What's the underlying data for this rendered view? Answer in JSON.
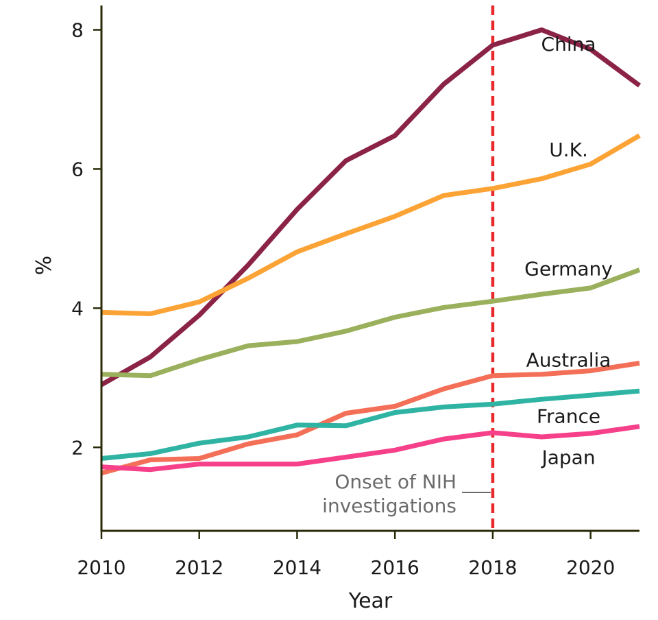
{
  "chart_data": {
    "type": "line",
    "title": "",
    "xlabel": "Year",
    "ylabel": "%",
    "xlim": [
      2010,
      2021
    ],
    "ylim": [
      0.8,
      8.35
    ],
    "x_ticks": [
      2010,
      2012,
      2014,
      2016,
      2018,
      2020
    ],
    "y_ticks": [
      2,
      4,
      6,
      8
    ],
    "x": [
      2010,
      2011,
      2012,
      2013,
      2014,
      2015,
      2016,
      2017,
      2018,
      2019,
      2020,
      2021
    ],
    "series": [
      {
        "name": "China",
        "color": "#8b2346",
        "values": [
          2.9,
          3.3,
          3.9,
          4.62,
          5.42,
          6.12,
          6.48,
          7.22,
          7.78,
          8.0,
          7.72,
          7.2
        ]
      },
      {
        "name": "U.K.",
        "color": "#fca336",
        "values": [
          3.94,
          3.92,
          4.09,
          4.43,
          4.81,
          5.07,
          5.32,
          5.62,
          5.72,
          5.86,
          6.07,
          6.48
        ]
      },
      {
        "name": "Germany",
        "color": "#9bb05c",
        "values": [
          3.05,
          3.03,
          3.26,
          3.46,
          3.52,
          3.67,
          3.87,
          4.01,
          4.1,
          4.2,
          4.29,
          4.55
        ]
      },
      {
        "name": "Australia",
        "color": "#f46f58",
        "values": [
          1.63,
          1.82,
          1.84,
          2.05,
          2.18,
          2.49,
          2.59,
          2.84,
          3.03,
          3.05,
          3.1,
          3.21
        ]
      },
      {
        "name": "France",
        "color": "#2fb3a2",
        "values": [
          1.84,
          1.91,
          2.06,
          2.15,
          2.32,
          2.31,
          2.5,
          2.58,
          2.62,
          2.69,
          2.75,
          2.81
        ]
      },
      {
        "name": "Japan",
        "color": "#f6418a",
        "values": [
          1.72,
          1.68,
          1.76,
          1.76,
          1.76,
          1.86,
          1.96,
          2.12,
          2.21,
          2.15,
          2.2,
          2.3
        ]
      }
    ],
    "series_labels": [
      {
        "name": "China",
        "anchor_x": 2019.55,
        "anchor_y": 7.7
      },
      {
        "name": "U.K.",
        "anchor_x": 2019.55,
        "anchor_y": 6.18
      },
      {
        "name": "Germany",
        "anchor_x": 2019.55,
        "anchor_y": 4.47
      },
      {
        "name": "Australia",
        "anchor_x": 2019.55,
        "anchor_y": 3.16
      },
      {
        "name": "France",
        "anchor_x": 2019.55,
        "anchor_y": 2.35
      },
      {
        "name": "Japan",
        "anchor_x": 2019.55,
        "anchor_y": 1.76
      }
    ],
    "marker_line": {
      "x": 2018,
      "color": "#e8282a",
      "style": "dashed"
    },
    "annotation": {
      "lines": [
        "Onset of NIH",
        "investigations"
      ],
      "color": "#6b6b6b"
    },
    "axis_color": "#2b2a08",
    "grid": false
  }
}
